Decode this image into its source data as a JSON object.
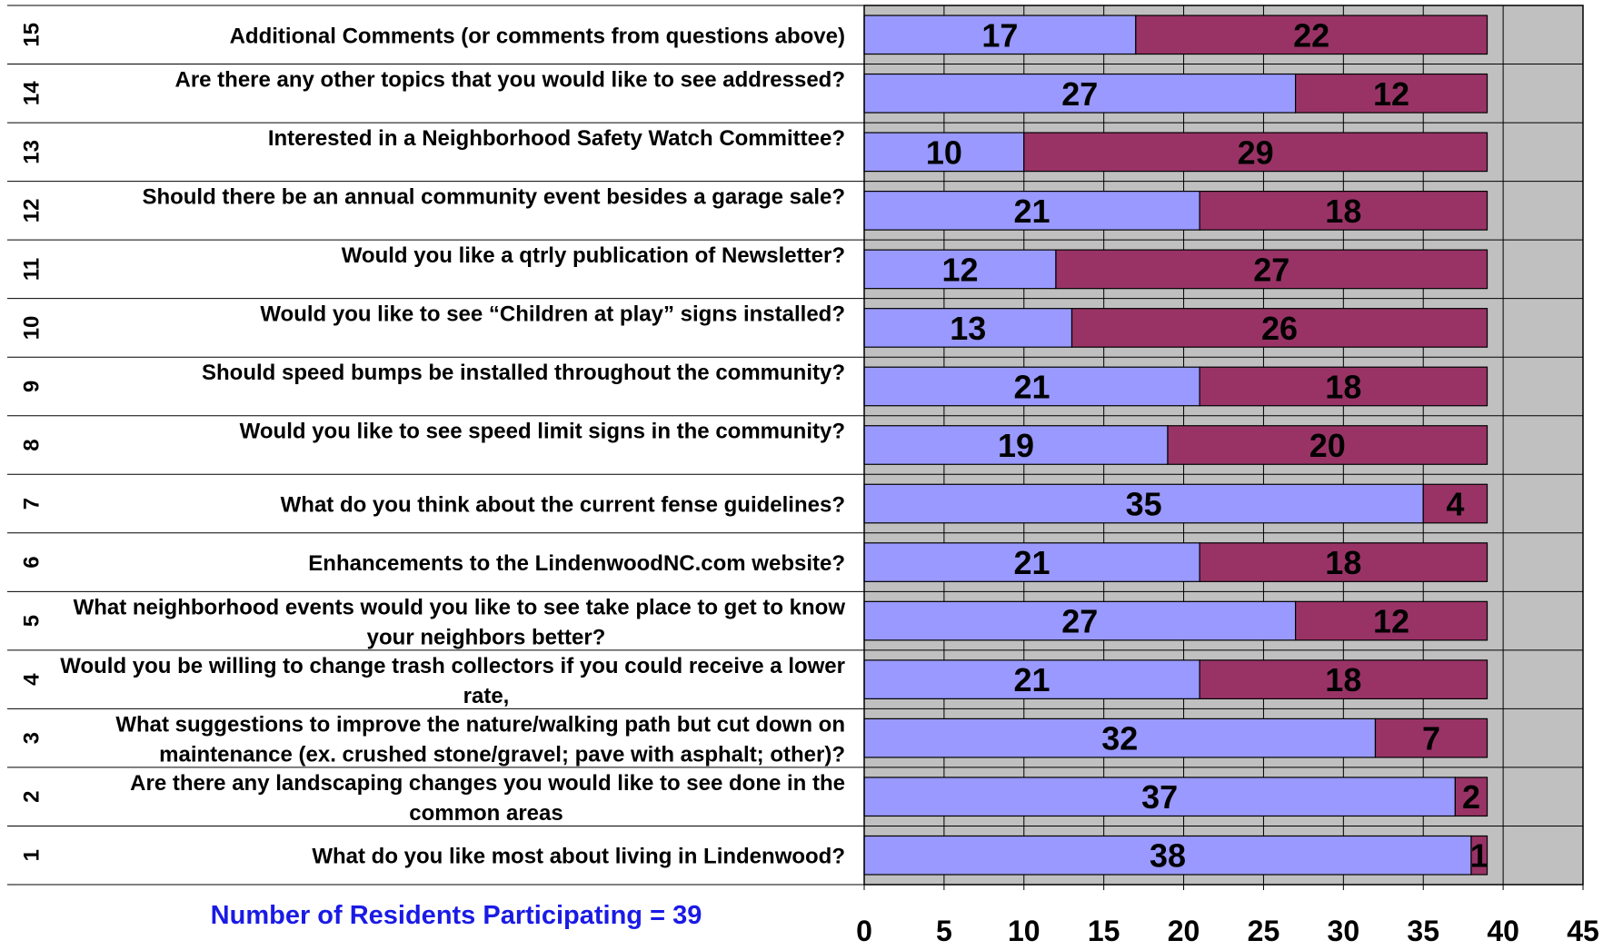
{
  "chart_data": {
    "type": "bar",
    "orientation": "horizontal",
    "stacked": true,
    "xlim": [
      0,
      45
    ],
    "xticks": [
      0,
      5,
      10,
      15,
      20,
      25,
      30,
      35,
      40,
      45
    ],
    "grid": true,
    "colors": {
      "series_a": "#9999ff",
      "series_b": "#993366",
      "plot_bg": "#c0c0c0"
    },
    "rows": [
      {
        "num": "15",
        "lines": [
          "Additional Comments (or comments from questions above)"
        ],
        "a": 17,
        "b": 22
      },
      {
        "num": "14",
        "lines": [
          "Are there any other topics that you would like to see addressed?"
        ],
        "a": 27,
        "b": 12
      },
      {
        "num": "13",
        "lines": [
          "Interested in a Neighborhood Safety Watch Committee?"
        ],
        "a": 10,
        "b": 29
      },
      {
        "num": "12",
        "lines": [
          "Should there be an annual community event besides a garage sale?"
        ],
        "a": 21,
        "b": 18
      },
      {
        "num": "11",
        "lines": [
          "Would you like a qtrly publication of Newsletter?"
        ],
        "a": 12,
        "b": 27
      },
      {
        "num": "10",
        "lines": [
          "Would you like to see “Children at play” signs installed?"
        ],
        "a": 13,
        "b": 26
      },
      {
        "num": "9",
        "lines": [
          "Should speed bumps be installed throughout the community?"
        ],
        "a": 21,
        "b": 18
      },
      {
        "num": "8",
        "lines": [
          "Would you like to see speed limit signs in the community?"
        ],
        "a": 19,
        "b": 20
      },
      {
        "num": "7",
        "lines": [
          "What do you think about the current fense guidelines?"
        ],
        "a": 35,
        "b": 4
      },
      {
        "num": "6",
        "lines": [
          "Enhancements to the LindenwoodNC.com website?"
        ],
        "a": 21,
        "b": 18
      },
      {
        "num": "5",
        "lines": [
          "What neighborhood events would you like to see take place to get to know",
          "your neighbors better?"
        ],
        "a": 27,
        "b": 12
      },
      {
        "num": "4",
        "lines": [
          "Would you be willing to change trash collectors if you could receive a lower",
          "rate,"
        ],
        "a": 21,
        "b": 18
      },
      {
        "num": "3",
        "lines": [
          "What suggestions to improve the nature/walking path but cut down on",
          "maintenance (ex. crushed stone/gravel; pave with asphalt; other)?"
        ],
        "a": 32,
        "b": 7
      },
      {
        "num": "2",
        "lines": [
          "Are there any landscaping changes you would like to see done in the",
          "common areas"
        ],
        "a": 37,
        "b": 2
      },
      {
        "num": "1",
        "lines": [
          "What do you like most about living in Lindenwood?"
        ],
        "a": 38,
        "b": 1
      }
    ]
  },
  "footer": {
    "participation": "Number of Residents Participating = 39"
  }
}
